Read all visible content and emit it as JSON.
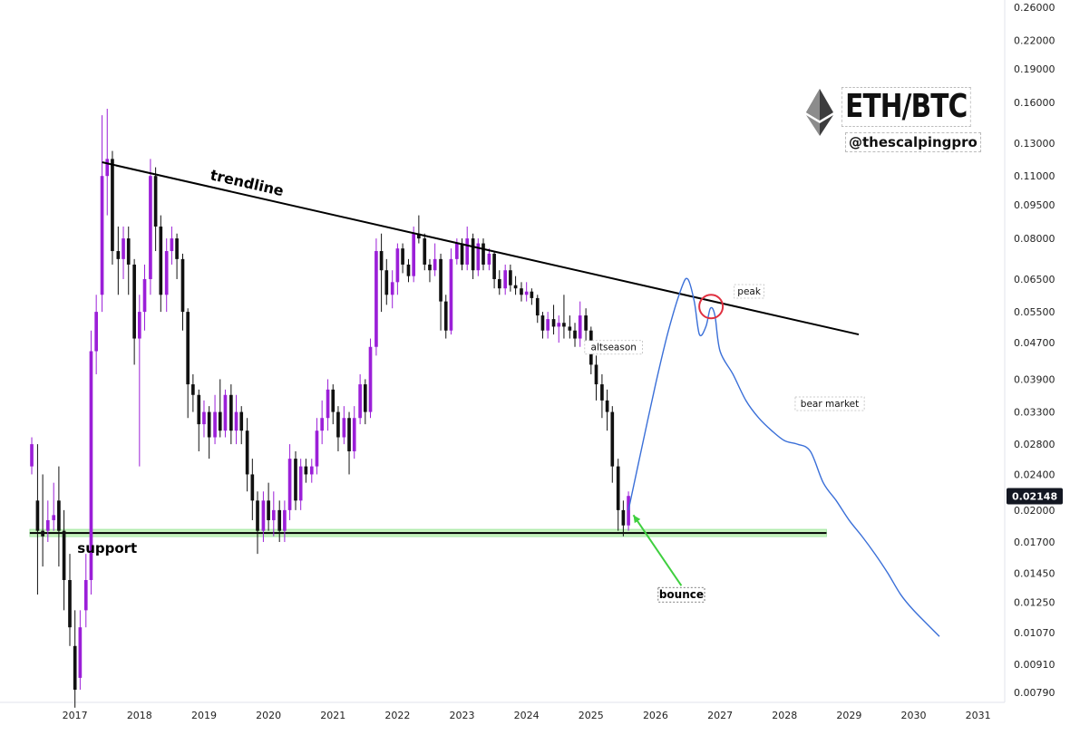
{
  "title": "ETH/BTC",
  "handle": "@thescalpingpro",
  "colors": {
    "up": "#9b1fd8",
    "down": "#111111",
    "trend": "#000000",
    "support": "#000000",
    "support_zone": "#c8f5c0",
    "projection": "#3a6fd8",
    "arrow": "#3fcf3f",
    "circle": "#e03040",
    "price_tag_bg": "#131722",
    "price_tag_text": "#ffffff"
  },
  "chart_data": {
    "type": "candlestick",
    "y_scale": "log",
    "ylim": [
      0.0072,
      0.27
    ],
    "xlim": [
      "2016-03",
      "2031-06"
    ],
    "x_ticks": [
      "2017",
      "2018",
      "2019",
      "2020",
      "2021",
      "2022",
      "2023",
      "2024",
      "2025",
      "2026",
      "2027",
      "2028",
      "2029",
      "2030",
      "2031"
    ],
    "y_ticks": [
      "0.26000",
      "0.22000",
      "0.19000",
      "0.16000",
      "0.13000",
      "0.11000",
      "0.09500",
      "0.08000",
      "0.06500",
      "0.05500",
      "0.04700",
      "0.03900",
      "0.03300",
      "0.02800",
      "0.02400",
      "0.02000",
      "0.01700",
      "0.01450",
      "0.01250",
      "0.01070",
      "0.00910",
      "0.00790"
    ],
    "last_price": "0.02148",
    "candles": [
      {
        "t": 2016.33,
        "o": 0.025,
        "c": 0.028,
        "h": 0.029,
        "l": 0.024
      },
      {
        "t": 2016.42,
        "o": 0.021,
        "c": 0.018,
        "h": 0.028,
        "l": 0.013
      },
      {
        "t": 2016.5,
        "o": 0.018,
        "c": 0.0175,
        "h": 0.024,
        "l": 0.015
      },
      {
        "t": 2016.58,
        "o": 0.018,
        "c": 0.019,
        "h": 0.021,
        "l": 0.017
      },
      {
        "t": 2016.67,
        "o": 0.019,
        "c": 0.0195,
        "h": 0.023,
        "l": 0.018
      },
      {
        "t": 2016.75,
        "o": 0.021,
        "c": 0.018,
        "h": 0.025,
        "l": 0.015
      },
      {
        "t": 2016.83,
        "o": 0.018,
        "c": 0.014,
        "h": 0.02,
        "l": 0.012
      },
      {
        "t": 2016.92,
        "o": 0.014,
        "c": 0.011,
        "h": 0.016,
        "l": 0.01
      },
      {
        "t": 2017.0,
        "o": 0.01,
        "c": 0.008,
        "h": 0.012,
        "l": 0.0073
      },
      {
        "t": 2017.08,
        "o": 0.0085,
        "c": 0.011,
        "h": 0.012,
        "l": 0.008
      },
      {
        "t": 2017.17,
        "o": 0.012,
        "c": 0.014,
        "h": 0.016,
        "l": 0.011
      },
      {
        "t": 2017.25,
        "o": 0.014,
        "c": 0.045,
        "h": 0.05,
        "l": 0.013
      },
      {
        "t": 2017.33,
        "o": 0.045,
        "c": 0.055,
        "h": 0.06,
        "l": 0.04
      },
      {
        "t": 2017.42,
        "o": 0.06,
        "c": 0.11,
        "h": 0.15,
        "l": 0.055
      },
      {
        "t": 2017.5,
        "o": 0.11,
        "c": 0.12,
        "h": 0.155,
        "l": 0.09
      },
      {
        "t": 2017.58,
        "o": 0.12,
        "c": 0.075,
        "h": 0.125,
        "l": 0.07
      },
      {
        "t": 2017.67,
        "o": 0.075,
        "c": 0.072,
        "h": 0.085,
        "l": 0.06
      },
      {
        "t": 2017.75,
        "o": 0.072,
        "c": 0.08,
        "h": 0.085,
        "l": 0.065
      },
      {
        "t": 2017.83,
        "o": 0.08,
        "c": 0.07,
        "h": 0.085,
        "l": 0.06
      },
      {
        "t": 2017.92,
        "o": 0.07,
        "c": 0.048,
        "h": 0.072,
        "l": 0.042
      },
      {
        "t": 2018.0,
        "o": 0.048,
        "c": 0.055,
        "h": 0.06,
        "l": 0.025
      },
      {
        "t": 2018.08,
        "o": 0.055,
        "c": 0.065,
        "h": 0.07,
        "l": 0.05
      },
      {
        "t": 2018.17,
        "o": 0.065,
        "c": 0.11,
        "h": 0.12,
        "l": 0.06
      },
      {
        "t": 2018.25,
        "o": 0.11,
        "c": 0.085,
        "h": 0.115,
        "l": 0.075
      },
      {
        "t": 2018.33,
        "o": 0.085,
        "c": 0.06,
        "h": 0.09,
        "l": 0.055
      },
      {
        "t": 2018.42,
        "o": 0.06,
        "c": 0.075,
        "h": 0.08,
        "l": 0.055
      },
      {
        "t": 2018.5,
        "o": 0.075,
        "c": 0.08,
        "h": 0.085,
        "l": 0.07
      },
      {
        "t": 2018.58,
        "o": 0.08,
        "c": 0.072,
        "h": 0.082,
        "l": 0.065
      },
      {
        "t": 2018.67,
        "o": 0.072,
        "c": 0.055,
        "h": 0.074,
        "l": 0.05
      },
      {
        "t": 2018.75,
        "o": 0.055,
        "c": 0.038,
        "h": 0.056,
        "l": 0.032
      },
      {
        "t": 2018.83,
        "o": 0.038,
        "c": 0.036,
        "h": 0.04,
        "l": 0.033
      },
      {
        "t": 2018.92,
        "o": 0.036,
        "c": 0.031,
        "h": 0.037,
        "l": 0.027
      },
      {
        "t": 2019.0,
        "o": 0.031,
        "c": 0.033,
        "h": 0.035,
        "l": 0.029
      },
      {
        "t": 2019.08,
        "o": 0.033,
        "c": 0.029,
        "h": 0.034,
        "l": 0.026
      },
      {
        "t": 2019.17,
        "o": 0.029,
        "c": 0.033,
        "h": 0.036,
        "l": 0.028
      },
      {
        "t": 2019.25,
        "o": 0.033,
        "c": 0.03,
        "h": 0.039,
        "l": 0.029
      },
      {
        "t": 2019.33,
        "o": 0.03,
        "c": 0.036,
        "h": 0.037,
        "l": 0.029
      },
      {
        "t": 2019.42,
        "o": 0.036,
        "c": 0.03,
        "h": 0.038,
        "l": 0.028
      },
      {
        "t": 2019.5,
        "o": 0.03,
        "c": 0.033,
        "h": 0.036,
        "l": 0.028
      },
      {
        "t": 2019.58,
        "o": 0.033,
        "c": 0.03,
        "h": 0.034,
        "l": 0.028
      },
      {
        "t": 2019.67,
        "o": 0.03,
        "c": 0.024,
        "h": 0.032,
        "l": 0.022
      },
      {
        "t": 2019.75,
        "o": 0.024,
        "c": 0.021,
        "h": 0.026,
        "l": 0.019
      },
      {
        "t": 2019.83,
        "o": 0.021,
        "c": 0.018,
        "h": 0.022,
        "l": 0.016
      },
      {
        "t": 2019.92,
        "o": 0.018,
        "c": 0.021,
        "h": 0.022,
        "l": 0.017
      },
      {
        "t": 2020.0,
        "o": 0.021,
        "c": 0.019,
        "h": 0.023,
        "l": 0.018
      },
      {
        "t": 2020.08,
        "o": 0.019,
        "c": 0.02,
        "h": 0.022,
        "l": 0.0175
      },
      {
        "t": 2020.17,
        "o": 0.02,
        "c": 0.018,
        "h": 0.021,
        "l": 0.017
      },
      {
        "t": 2020.25,
        "o": 0.018,
        "c": 0.02,
        "h": 0.021,
        "l": 0.017
      },
      {
        "t": 2020.33,
        "o": 0.02,
        "c": 0.026,
        "h": 0.028,
        "l": 0.019
      },
      {
        "t": 2020.42,
        "o": 0.026,
        "c": 0.021,
        "h": 0.027,
        "l": 0.02
      },
      {
        "t": 2020.5,
        "o": 0.021,
        "c": 0.025,
        "h": 0.026,
        "l": 0.02
      },
      {
        "t": 2020.58,
        "o": 0.025,
        "c": 0.024,
        "h": 0.026,
        "l": 0.023
      },
      {
        "t": 2020.67,
        "o": 0.024,
        "c": 0.025,
        "h": 0.026,
        "l": 0.023
      },
      {
        "t": 2020.75,
        "o": 0.025,
        "c": 0.03,
        "h": 0.032,
        "l": 0.024
      },
      {
        "t": 2020.83,
        "o": 0.03,
        "c": 0.032,
        "h": 0.035,
        "l": 0.028
      },
      {
        "t": 2020.92,
        "o": 0.032,
        "c": 0.037,
        "h": 0.039,
        "l": 0.03
      },
      {
        "t": 2021.0,
        "o": 0.037,
        "c": 0.033,
        "h": 0.038,
        "l": 0.031
      },
      {
        "t": 2021.08,
        "o": 0.033,
        "c": 0.029,
        "h": 0.034,
        "l": 0.027
      },
      {
        "t": 2021.17,
        "o": 0.029,
        "c": 0.032,
        "h": 0.034,
        "l": 0.028
      },
      {
        "t": 2021.25,
        "o": 0.032,
        "c": 0.027,
        "h": 0.033,
        "l": 0.024
      },
      {
        "t": 2021.33,
        "o": 0.027,
        "c": 0.032,
        "h": 0.034,
        "l": 0.026
      },
      {
        "t": 2021.42,
        "o": 0.032,
        "c": 0.038,
        "h": 0.04,
        "l": 0.031
      },
      {
        "t": 2021.5,
        "o": 0.038,
        "c": 0.033,
        "h": 0.039,
        "l": 0.031
      },
      {
        "t": 2021.58,
        "o": 0.033,
        "c": 0.046,
        "h": 0.048,
        "l": 0.032
      },
      {
        "t": 2021.67,
        "o": 0.046,
        "c": 0.075,
        "h": 0.08,
        "l": 0.044
      },
      {
        "t": 2021.75,
        "o": 0.075,
        "c": 0.068,
        "h": 0.082,
        "l": 0.055
      },
      {
        "t": 2021.83,
        "o": 0.068,
        "c": 0.06,
        "h": 0.072,
        "l": 0.057
      },
      {
        "t": 2021.92,
        "o": 0.06,
        "c": 0.064,
        "h": 0.068,
        "l": 0.056
      },
      {
        "t": 2022.0,
        "o": 0.064,
        "c": 0.076,
        "h": 0.078,
        "l": 0.06
      },
      {
        "t": 2022.08,
        "o": 0.076,
        "c": 0.07,
        "h": 0.078,
        "l": 0.067
      },
      {
        "t": 2022.17,
        "o": 0.07,
        "c": 0.066,
        "h": 0.072,
        "l": 0.064
      },
      {
        "t": 2022.25,
        "o": 0.066,
        "c": 0.082,
        "h": 0.085,
        "l": 0.064
      },
      {
        "t": 2022.33,
        "o": 0.082,
        "c": 0.08,
        "h": 0.09,
        "l": 0.078
      },
      {
        "t": 2022.42,
        "o": 0.08,
        "c": 0.07,
        "h": 0.082,
        "l": 0.068
      },
      {
        "t": 2022.5,
        "o": 0.07,
        "c": 0.068,
        "h": 0.072,
        "l": 0.064
      },
      {
        "t": 2022.58,
        "o": 0.068,
        "c": 0.072,
        "h": 0.078,
        "l": 0.066
      },
      {
        "t": 2022.67,
        "o": 0.072,
        "c": 0.058,
        "h": 0.074,
        "l": 0.05
      },
      {
        "t": 2022.75,
        "o": 0.058,
        "c": 0.05,
        "h": 0.06,
        "l": 0.048
      },
      {
        "t": 2022.83,
        "o": 0.05,
        "c": 0.072,
        "h": 0.076,
        "l": 0.049
      },
      {
        "t": 2022.92,
        "o": 0.072,
        "c": 0.078,
        "h": 0.08,
        "l": 0.07
      },
      {
        "t": 2023.0,
        "o": 0.078,
        "c": 0.07,
        "h": 0.08,
        "l": 0.068
      },
      {
        "t": 2023.08,
        "o": 0.07,
        "c": 0.08,
        "h": 0.085,
        "l": 0.068
      },
      {
        "t": 2023.17,
        "o": 0.08,
        "c": 0.068,
        "h": 0.082,
        "l": 0.065
      },
      {
        "t": 2023.25,
        "o": 0.068,
        "c": 0.078,
        "h": 0.08,
        "l": 0.066
      },
      {
        "t": 2023.33,
        "o": 0.078,
        "c": 0.07,
        "h": 0.08,
        "l": 0.068
      },
      {
        "t": 2023.42,
        "o": 0.07,
        "c": 0.074,
        "h": 0.076,
        "l": 0.068
      },
      {
        "t": 2023.5,
        "o": 0.074,
        "c": 0.065,
        "h": 0.075,
        "l": 0.062
      },
      {
        "t": 2023.58,
        "o": 0.065,
        "c": 0.062,
        "h": 0.068,
        "l": 0.06
      },
      {
        "t": 2023.67,
        "o": 0.062,
        "c": 0.068,
        "h": 0.07,
        "l": 0.06
      },
      {
        "t": 2023.75,
        "o": 0.068,
        "c": 0.063,
        "h": 0.07,
        "l": 0.061
      },
      {
        "t": 2023.83,
        "o": 0.063,
        "c": 0.062,
        "h": 0.066,
        "l": 0.06
      },
      {
        "t": 2023.92,
        "o": 0.062,
        "c": 0.06,
        "h": 0.064,
        "l": 0.058
      },
      {
        "t": 2024.0,
        "o": 0.06,
        "c": 0.061,
        "h": 0.064,
        "l": 0.058
      },
      {
        "t": 2024.08,
        "o": 0.061,
        "c": 0.059,
        "h": 0.062,
        "l": 0.057
      },
      {
        "t": 2024.17,
        "o": 0.059,
        "c": 0.054,
        "h": 0.06,
        "l": 0.052
      },
      {
        "t": 2024.25,
        "o": 0.054,
        "c": 0.05,
        "h": 0.055,
        "l": 0.048
      },
      {
        "t": 2024.33,
        "o": 0.05,
        "c": 0.053,
        "h": 0.055,
        "l": 0.048
      },
      {
        "t": 2024.42,
        "o": 0.053,
        "c": 0.051,
        "h": 0.057,
        "l": 0.049
      },
      {
        "t": 2024.5,
        "o": 0.051,
        "c": 0.052,
        "h": 0.054,
        "l": 0.047
      },
      {
        "t": 2024.58,
        "o": 0.052,
        "c": 0.051,
        "h": 0.06,
        "l": 0.048
      },
      {
        "t": 2024.67,
        "o": 0.051,
        "c": 0.05,
        "h": 0.054,
        "l": 0.048
      },
      {
        "t": 2024.75,
        "o": 0.05,
        "c": 0.048,
        "h": 0.052,
        "l": 0.046
      },
      {
        "t": 2024.83,
        "o": 0.048,
        "c": 0.054,
        "h": 0.058,
        "l": 0.046
      },
      {
        "t": 2024.92,
        "o": 0.054,
        "c": 0.05,
        "h": 0.056,
        "l": 0.047
      },
      {
        "t": 2025.0,
        "o": 0.05,
        "c": 0.042,
        "h": 0.051,
        "l": 0.04
      },
      {
        "t": 2025.08,
        "o": 0.042,
        "c": 0.038,
        "h": 0.044,
        "l": 0.035
      },
      {
        "t": 2025.17,
        "o": 0.038,
        "c": 0.035,
        "h": 0.04,
        "l": 0.032
      },
      {
        "t": 2025.25,
        "o": 0.035,
        "c": 0.033,
        "h": 0.037,
        "l": 0.03
      },
      {
        "t": 2025.33,
        "o": 0.033,
        "c": 0.025,
        "h": 0.034,
        "l": 0.023
      },
      {
        "t": 2025.42,
        "o": 0.025,
        "c": 0.02,
        "h": 0.026,
        "l": 0.018
      },
      {
        "t": 2025.5,
        "o": 0.02,
        "c": 0.0185,
        "h": 0.021,
        "l": 0.0175
      },
      {
        "t": 2025.58,
        "o": 0.0185,
        "c": 0.0215,
        "h": 0.022,
        "l": 0.018
      }
    ],
    "projection": [
      {
        "t": 2025.58,
        "v": 0.02
      },
      {
        "t": 2025.75,
        "v": 0.026
      },
      {
        "t": 2026.0,
        "v": 0.038
      },
      {
        "t": 2026.2,
        "v": 0.05
      },
      {
        "t": 2026.4,
        "v": 0.062
      },
      {
        "t": 2026.5,
        "v": 0.065
      },
      {
        "t": 2026.6,
        "v": 0.058
      },
      {
        "t": 2026.68,
        "v": 0.049
      },
      {
        "t": 2026.78,
        "v": 0.051
      },
      {
        "t": 2026.85,
        "v": 0.056
      },
      {
        "t": 2026.92,
        "v": 0.054
      },
      {
        "t": 2027.0,
        "v": 0.045
      },
      {
        "t": 2027.2,
        "v": 0.04
      },
      {
        "t": 2027.4,
        "v": 0.035
      },
      {
        "t": 2027.6,
        "v": 0.032
      },
      {
        "t": 2027.8,
        "v": 0.03
      },
      {
        "t": 2028.0,
        "v": 0.0285
      },
      {
        "t": 2028.2,
        "v": 0.028
      },
      {
        "t": 2028.4,
        "v": 0.027
      },
      {
        "t": 2028.6,
        "v": 0.023
      },
      {
        "t": 2028.8,
        "v": 0.021
      },
      {
        "t": 2029.0,
        "v": 0.019
      },
      {
        "t": 2029.2,
        "v": 0.0175
      },
      {
        "t": 2029.4,
        "v": 0.016
      },
      {
        "t": 2029.6,
        "v": 0.0145
      },
      {
        "t": 2029.8,
        "v": 0.013
      },
      {
        "t": 2030.0,
        "v": 0.012
      },
      {
        "t": 2030.4,
        "v": 0.0105
      }
    ],
    "trendline": {
      "t1": 2017.42,
      "v1": 0.118,
      "t2": 2029.15,
      "v2": 0.049
    },
    "support": {
      "t1": 2016.3,
      "t2": 2028.65,
      "v": 0.0178
    },
    "annotations": {
      "trendline": "trendline",
      "support": "support",
      "peak": "peak",
      "altseason": "altseason",
      "bear_market": "bear market",
      "bounce": "bounce"
    }
  }
}
